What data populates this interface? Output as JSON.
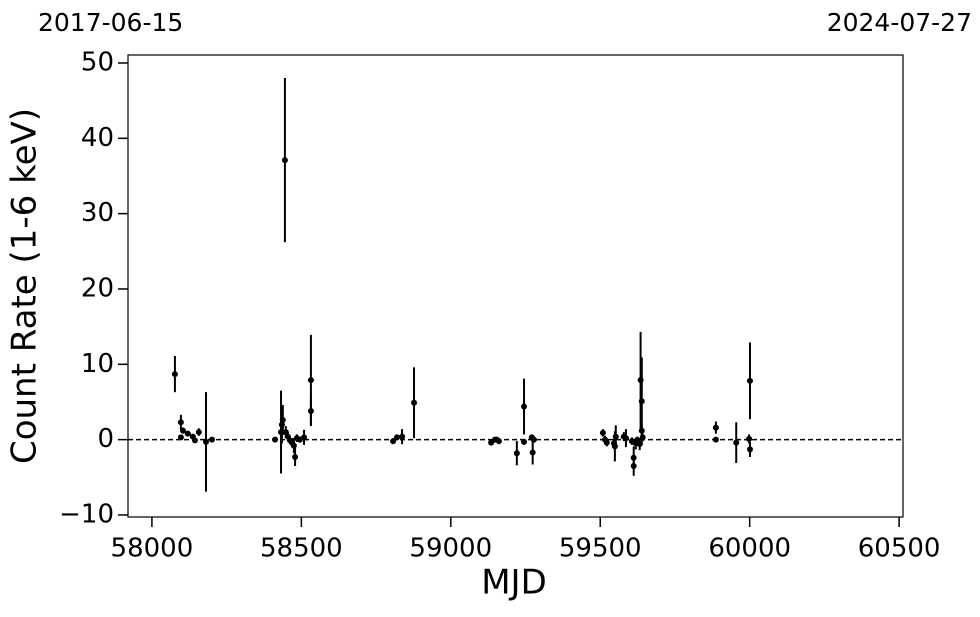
{
  "chart_data": {
    "type": "scatter",
    "x_label": "MJD",
    "y_label": "Count Rate (1-6 keV)",
    "top_left_label": "2017-06-15",
    "top_right_label": "2024-07-27",
    "hline": 0,
    "x": [
      58077,
      58097,
      58104,
      58097,
      58120,
      58137,
      58144,
      58157,
      58181,
      58201,
      58412,
      58432,
      58435,
      58438,
      58445,
      58448,
      58455,
      58462,
      58469,
      58475,
      58479,
      58485,
      58495,
      58509,
      58532,
      58532,
      58807,
      58820,
      58837,
      58877,
      59135,
      59148,
      59154,
      59161,
      59221,
      59245,
      59245,
      59271,
      59274,
      59278,
      59509,
      59516,
      59522,
      59546,
      59549,
      59552,
      59579,
      59586,
      59606,
      59612,
      59612,
      59619,
      59625,
      59632,
      59635,
      59639,
      59639,
      59642,
      59887,
      59887,
      59955,
      59998,
      60001,
      60001
    ],
    "series": [
      {
        "color": "#000000",
        "values": [
          8.7,
          2.3,
          1.2,
          0.3,
          0.8,
          0.4,
          -0.1,
          1.0,
          -0.3,
          0,
          0,
          1,
          2,
          2.6,
          37.1,
          1,
          0.4,
          -0.1,
          -0.4,
          -0.8,
          -2.3,
          0.2,
          0,
          0.3,
          3.8,
          7.9,
          -0.2,
          0.3,
          0.4,
          4.9,
          -0.4,
          0,
          0,
          -0.2,
          -1.8,
          -0.3,
          4.4,
          0.3,
          -1.7,
          0,
          0.9,
          0,
          -0.4,
          -0.5,
          -0.9,
          0.4,
          0.4,
          0.2,
          -0.2,
          -2.4,
          -3.5,
          -0.5,
          -0.1,
          -0.6,
          7.9,
          5.1,
          1.2,
          0.3,
          1.6,
          0,
          -0.4,
          0.1,
          7.8,
          -1.3
        ],
        "errors": [
          2.4,
          1,
          0.4,
          0.3,
          0.3,
          0.3,
          0.3,
          0.5,
          6.6,
          0.2,
          0.2,
          5.5,
          2.5,
          2,
          10.9,
          0.8,
          0.6,
          0.5,
          0.6,
          1,
          1.2,
          0.5,
          0.4,
          1,
          2,
          6,
          0.4,
          0.4,
          1,
          4.7,
          0.3,
          0.3,
          0.3,
          0.4,
          1.6,
          0.4,
          3.7,
          0.4,
          1.6,
          0.4,
          0.5,
          0.5,
          0.5,
          0.6,
          2,
          1.5,
          0.6,
          1.2,
          0.5,
          1.5,
          1.3,
          0.8,
          0.5,
          0.8,
          6.4,
          5.8,
          0.8,
          0.5,
          0.8,
          0.3,
          2.7,
          0.6,
          5.1,
          1
        ]
      }
    ],
    "xlim": [
      57920,
      60513
    ],
    "ylim": [
      -10.27,
      51.06
    ],
    "xticks": [
      58000,
      58500,
      59000,
      59500,
      60000,
      60500
    ],
    "yticks": [
      {
        "value": -10,
        "label": "−10"
      },
      0,
      10,
      20,
      30,
      40,
      50
    ]
  }
}
